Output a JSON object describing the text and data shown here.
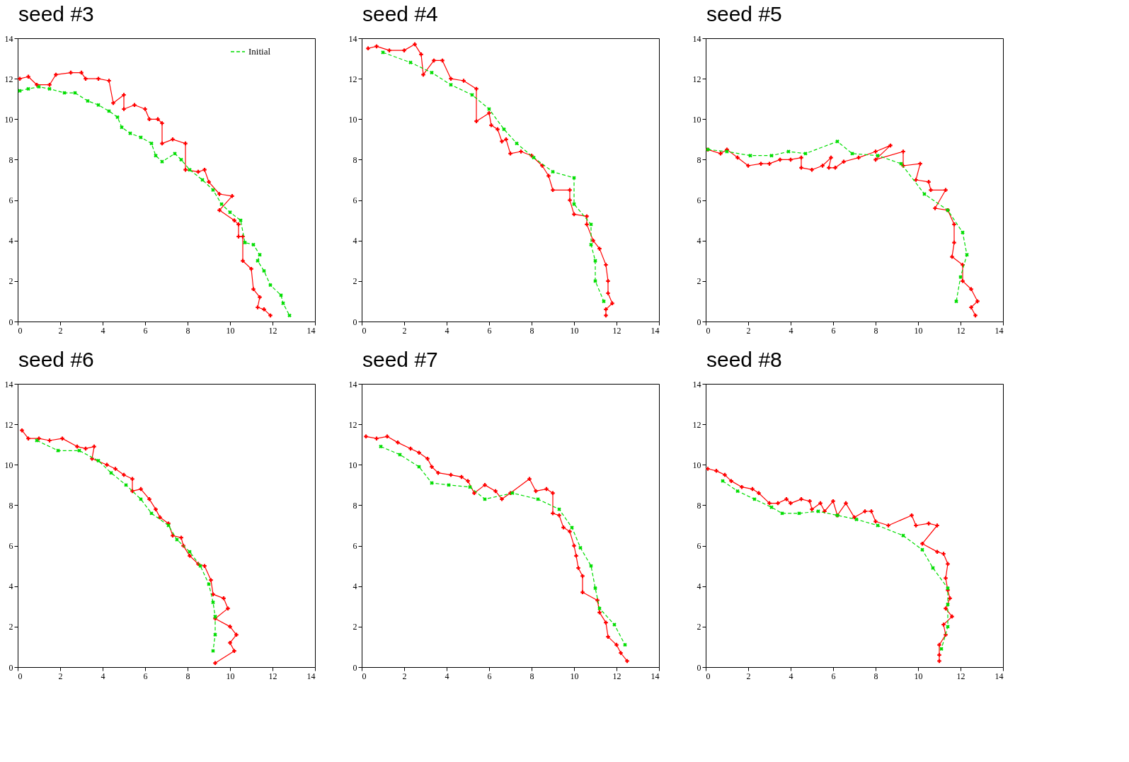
{
  "chart_data": [
    {
      "type": "line",
      "title": "seed #3",
      "xlim": [
        0,
        14
      ],
      "xticks": [
        0,
        2,
        4,
        6,
        8,
        10,
        12,
        14
      ],
      "ylim": [
        0,
        14
      ],
      "yticks": [
        0,
        2,
        4,
        6,
        8,
        10,
        12,
        14
      ],
      "grid": false,
      "legend": "top right",
      "series": [
        {
          "color": "#ff0000",
          "line_style": "solid",
          "marker": "cross",
          "x": [
            0.1,
            0.5,
            0.9,
            1.5,
            1.8,
            2.5,
            3.0,
            3.2,
            3.8,
            4.3,
            4.5,
            5.0,
            5.0,
            5.5,
            6.0,
            6.2,
            6.6,
            6.8,
            6.8,
            7.3,
            7.9,
            7.9,
            8.5,
            8.8,
            9.0,
            9.5,
            10.1,
            9.5,
            10.2,
            10.4,
            10.4,
            10.6,
            10.6,
            11.0,
            11.1,
            11.4,
            11.3,
            11.6,
            11.9
          ],
          "values": [
            12.0,
            12.1,
            11.7,
            11.7,
            12.2,
            12.3,
            12.3,
            12.0,
            12.0,
            11.9,
            10.8,
            11.2,
            10.5,
            10.7,
            10.5,
            10.0,
            10.0,
            9.8,
            8.8,
            9.0,
            8.8,
            7.5,
            7.4,
            7.5,
            6.9,
            6.3,
            6.2,
            5.5,
            5.0,
            4.8,
            4.2,
            4.2,
            3.0,
            2.6,
            1.6,
            1.2,
            0.7,
            0.6,
            0.3
          ]
        },
        {
          "name": "Initial",
          "color": "#00dd00",
          "line_style": "dashed",
          "marker": "cross",
          "x": [
            0.1,
            0.5,
            1.0,
            1.5,
            2.2,
            2.7,
            3.3,
            3.8,
            4.3,
            4.7,
            4.9,
            5.3,
            5.8,
            6.3,
            6.5,
            6.8,
            7.4,
            7.7,
            8.1,
            8.7,
            9.2,
            9.6,
            10.0,
            10.5,
            10.7,
            11.1,
            11.4,
            11.3,
            11.6,
            11.9,
            12.4,
            12.5,
            12.8
          ],
          "values": [
            11.4,
            11.5,
            11.6,
            11.5,
            11.3,
            11.3,
            10.9,
            10.7,
            10.4,
            10.1,
            9.6,
            9.3,
            9.1,
            8.8,
            8.2,
            7.9,
            8.3,
            8.0,
            7.5,
            7.0,
            6.5,
            5.8,
            5.4,
            5.0,
            3.9,
            3.8,
            3.3,
            3.0,
            2.5,
            1.8,
            1.3,
            0.9,
            0.3
          ]
        }
      ]
    },
    {
      "type": "line",
      "title": "seed #4",
      "xlim": [
        0,
        14
      ],
      "xticks": [
        0,
        2,
        4,
        6,
        8,
        10,
        12,
        14
      ],
      "ylim": [
        0,
        14
      ],
      "yticks": [
        0,
        2,
        4,
        6,
        8,
        10,
        12,
        14
      ],
      "grid": false,
      "series": [
        {
          "color": "#ff0000",
          "line_style": "solid",
          "marker": "cross",
          "x": [
            0.3,
            0.7,
            1.3,
            2.0,
            2.5,
            2.8,
            2.9,
            3.4,
            3.8,
            4.2,
            4.8,
            5.4,
            5.4,
            6.0,
            6.1,
            6.4,
            6.6,
            6.8,
            7.0,
            7.5,
            8.0,
            8.5,
            8.8,
            9.0,
            9.8,
            9.8,
            10.0,
            10.6,
            10.6,
            10.9,
            11.2,
            11.5,
            11.6,
            11.6,
            11.8,
            11.5,
            11.5
          ],
          "values": [
            13.5,
            13.6,
            13.4,
            13.4,
            13.7,
            13.2,
            12.2,
            12.9,
            12.9,
            12.0,
            11.9,
            11.5,
            9.9,
            10.3,
            9.7,
            9.5,
            8.9,
            9.0,
            8.3,
            8.4,
            8.2,
            7.7,
            7.2,
            6.5,
            6.5,
            6.0,
            5.3,
            5.2,
            4.8,
            4.0,
            3.6,
            2.8,
            2.0,
            1.4,
            0.9,
            0.6,
            0.3
          ]
        },
        {
          "color": "#00dd00",
          "line_style": "dashed",
          "marker": "cross",
          "x": [
            1.0,
            2.3,
            3.3,
            4.2,
            5.2,
            6.0,
            6.7,
            7.3,
            8.1,
            9.0,
            10.0,
            10.0,
            10.8,
            10.8,
            11.0,
            11.0,
            11.4
          ],
          "values": [
            13.3,
            12.8,
            12.3,
            11.7,
            11.2,
            10.5,
            9.5,
            8.8,
            8.1,
            7.4,
            7.1,
            5.8,
            4.8,
            3.8,
            3.0,
            2.0,
            1.0
          ]
        }
      ]
    },
    {
      "type": "line",
      "title": "seed #5",
      "xlim": [
        0,
        14
      ],
      "xticks": [
        0,
        2,
        4,
        6,
        8,
        10,
        12,
        14
      ],
      "ylim": [
        0,
        14
      ],
      "yticks": [
        0,
        2,
        4,
        6,
        8,
        10,
        12,
        14
      ],
      "grid": false,
      "series": [
        {
          "color": "#ff0000",
          "line_style": "solid",
          "marker": "cross",
          "x": [
            0.1,
            0.7,
            1.0,
            1.5,
            2.0,
            2.6,
            3.0,
            3.5,
            4.0,
            4.5,
            4.5,
            5.0,
            5.5,
            5.9,
            5.8,
            6.1,
            6.5,
            7.2,
            8.0,
            8.7,
            8.0,
            9.3,
            9.3,
            10.1,
            9.9,
            10.5,
            10.6,
            11.3,
            10.8,
            11.4,
            11.7,
            11.7,
            11.6,
            12.1,
            12.1,
            12.5,
            12.8,
            12.5,
            12.7
          ],
          "values": [
            8.5,
            8.3,
            8.5,
            8.1,
            7.7,
            7.8,
            7.8,
            8.0,
            8.0,
            8.1,
            7.6,
            7.5,
            7.7,
            8.1,
            7.6,
            7.6,
            7.9,
            8.1,
            8.4,
            8.7,
            8.0,
            8.4,
            7.7,
            7.8,
            7.0,
            6.9,
            6.5,
            6.5,
            5.6,
            5.5,
            4.8,
            3.9,
            3.2,
            2.8,
            2.0,
            1.6,
            1.0,
            0.7,
            0.3
          ]
        },
        {
          "color": "#00dd00",
          "line_style": "dashed",
          "marker": "cross",
          "x": [
            0.1,
            1.0,
            2.1,
            3.1,
            3.9,
            4.7,
            6.2,
            6.9,
            8.1,
            9.2,
            10.3,
            11.4,
            12.1,
            12.3,
            12.0,
            11.8
          ],
          "values": [
            8.5,
            8.4,
            8.2,
            8.2,
            8.4,
            8.3,
            8.9,
            8.3,
            8.2,
            7.8,
            6.3,
            5.5,
            4.4,
            3.3,
            2.2,
            1.0
          ]
        }
      ]
    },
    {
      "type": "line",
      "title": "seed #6",
      "xlim": [
        0,
        14
      ],
      "xticks": [
        0,
        2,
        4,
        6,
        8,
        10,
        12,
        14
      ],
      "ylim": [
        0,
        14
      ],
      "yticks": [
        0,
        2,
        4,
        6,
        8,
        10,
        12,
        14
      ],
      "grid": false,
      "series": [
        {
          "color": "#ff0000",
          "line_style": "solid",
          "marker": "cross",
          "x": [
            0.2,
            0.5,
            1.0,
            1.5,
            2.1,
            2.8,
            3.2,
            3.6,
            3.5,
            4.2,
            4.6,
            5.0,
            5.4,
            5.4,
            5.8,
            6.2,
            6.5,
            6.7,
            7.1,
            7.3,
            7.7,
            7.8,
            8.1,
            8.5,
            8.8,
            9.1,
            9.2,
            9.7,
            9.9,
            9.3,
            10.0,
            10.3,
            10.0,
            10.2,
            9.3
          ],
          "values": [
            11.7,
            11.3,
            11.3,
            11.2,
            11.3,
            10.9,
            10.8,
            10.9,
            10.3,
            10.0,
            9.8,
            9.5,
            9.3,
            8.7,
            8.8,
            8.3,
            7.8,
            7.4,
            7.1,
            6.5,
            6.4,
            6.0,
            5.5,
            5.1,
            5.0,
            4.3,
            3.6,
            3.4,
            2.9,
            2.4,
            2.0,
            1.6,
            1.2,
            0.8,
            0.2
          ]
        },
        {
          "color": "#00dd00",
          "line_style": "dashed",
          "marker": "cross",
          "x": [
            0.9,
            1.9,
            2.9,
            3.8,
            4.4,
            5.1,
            5.8,
            6.3,
            7.1,
            7.5,
            8.1,
            8.6,
            9.0,
            9.2,
            9.3,
            9.3,
            9.2
          ],
          "values": [
            11.2,
            10.7,
            10.7,
            10.2,
            9.6,
            9.0,
            8.3,
            7.6,
            7.0,
            6.3,
            5.7,
            5.0,
            4.1,
            3.2,
            2.5,
            1.6,
            0.8
          ]
        }
      ]
    },
    {
      "type": "line",
      "title": "seed #7",
      "xlim": [
        0,
        14
      ],
      "xticks": [
        0,
        2,
        4,
        6,
        8,
        10,
        12,
        14
      ],
      "ylim": [
        0,
        14
      ],
      "yticks": [
        0,
        2,
        4,
        6,
        8,
        10,
        12,
        14
      ],
      "grid": false,
      "series": [
        {
          "color": "#ff0000",
          "line_style": "solid",
          "marker": "cross",
          "x": [
            0.2,
            0.7,
            1.2,
            1.7,
            2.3,
            2.7,
            3.1,
            3.3,
            3.6,
            4.2,
            4.7,
            5.0,
            5.3,
            5.8,
            6.3,
            6.6,
            7.0,
            7.9,
            8.2,
            8.7,
            9.0,
            9.0,
            9.3,
            9.5,
            9.8,
            10.0,
            10.1,
            10.2,
            10.4,
            10.4,
            11.1,
            11.2,
            11.5,
            11.6,
            12.0,
            12.2,
            12.5
          ],
          "values": [
            11.4,
            11.3,
            11.4,
            11.1,
            10.8,
            10.6,
            10.3,
            9.9,
            9.6,
            9.5,
            9.4,
            9.2,
            8.6,
            9.0,
            8.7,
            8.3,
            8.6,
            9.3,
            8.7,
            8.8,
            8.6,
            7.6,
            7.5,
            6.9,
            6.7,
            6.0,
            5.5,
            4.9,
            4.5,
            3.7,
            3.3,
            2.7,
            2.2,
            1.5,
            1.1,
            0.7,
            0.3
          ]
        },
        {
          "color": "#00dd00",
          "line_style": "dashed",
          "marker": "cross",
          "x": [
            0.9,
            1.8,
            2.7,
            3.3,
            4.1,
            5.1,
            5.8,
            7.1,
            8.3,
            9.3,
            9.9,
            10.3,
            10.8,
            11.0,
            11.2,
            11.9,
            12.4
          ],
          "values": [
            10.9,
            10.5,
            9.9,
            9.1,
            9.0,
            8.9,
            8.3,
            8.6,
            8.3,
            7.8,
            6.9,
            5.9,
            5.0,
            3.9,
            2.9,
            2.1,
            1.1
          ]
        }
      ]
    },
    {
      "type": "line",
      "title": "seed #8",
      "xlim": [
        0,
        14
      ],
      "xticks": [
        0,
        2,
        4,
        6,
        8,
        10,
        12,
        14
      ],
      "ylim": [
        0,
        14
      ],
      "yticks": [
        0,
        2,
        4,
        6,
        8,
        10,
        12,
        14
      ],
      "grid": false,
      "series": [
        {
          "color": "#ff0000",
          "line_style": "solid",
          "marker": "cross",
          "x": [
            0.1,
            0.5,
            0.9,
            1.2,
            1.7,
            2.2,
            2.5,
            3.0,
            3.4,
            3.8,
            4.0,
            4.5,
            4.9,
            5.0,
            5.4,
            5.6,
            6.0,
            6.2,
            6.6,
            7.0,
            7.5,
            7.8,
            8.0,
            8.6,
            9.7,
            9.9,
            10.5,
            10.9,
            10.2,
            10.9,
            11.2,
            11.4,
            11.3,
            11.4,
            11.5,
            11.3,
            11.6,
            11.2,
            11.3,
            11.0,
            11.0,
            11.0
          ],
          "values": [
            9.8,
            9.7,
            9.5,
            9.2,
            8.9,
            8.8,
            8.6,
            8.1,
            8.1,
            8.3,
            8.1,
            8.3,
            8.2,
            7.8,
            8.1,
            7.7,
            8.2,
            7.5,
            8.1,
            7.4,
            7.7,
            7.7,
            7.2,
            7.0,
            7.5,
            7.0,
            7.1,
            7.0,
            6.1,
            5.7,
            5.6,
            5.1,
            4.4,
            3.8,
            3.4,
            2.9,
            2.5,
            2.1,
            1.6,
            1.1,
            0.6,
            0.3
          ]
        },
        {
          "color": "#00dd00",
          "line_style": "dashed",
          "marker": "cross",
          "x": [
            0.8,
            1.5,
            2.3,
            3.1,
            3.6,
            4.4,
            5.3,
            6.2,
            7.1,
            8.1,
            9.3,
            10.2,
            10.7,
            11.4,
            11.4,
            11.4,
            11.1
          ],
          "values": [
            9.2,
            8.7,
            8.3,
            7.9,
            7.6,
            7.6,
            7.7,
            7.5,
            7.3,
            7.0,
            6.5,
            5.8,
            4.9,
            3.9,
            3.1,
            2.0,
            0.9
          ]
        }
      ]
    }
  ]
}
